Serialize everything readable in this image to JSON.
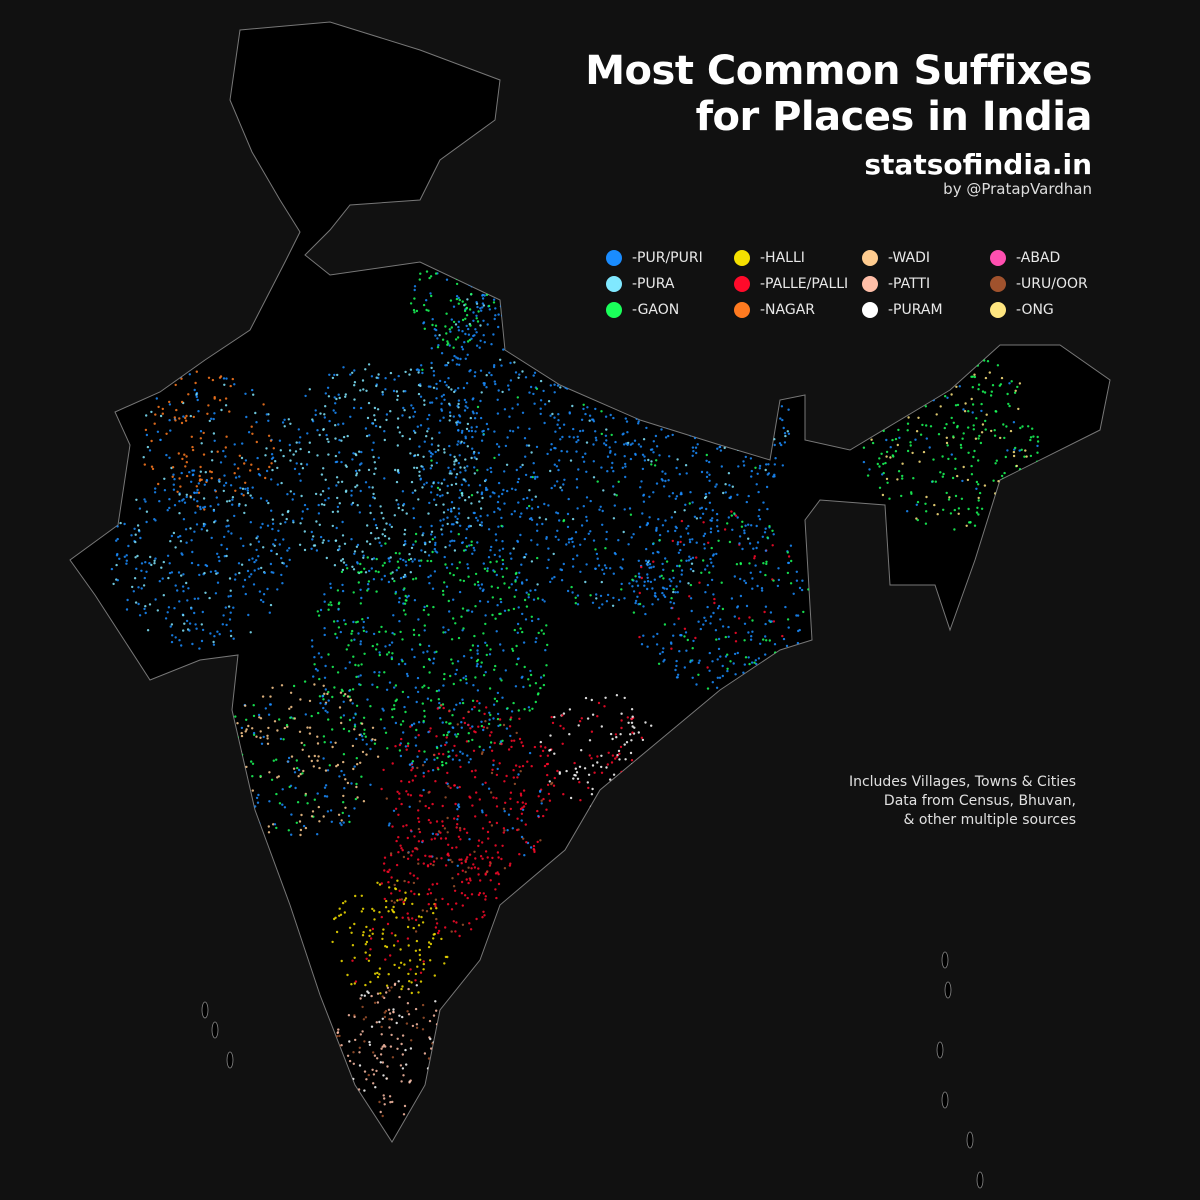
{
  "title_line1": "Most Common Suffixes",
  "title_line2": "for Places in India",
  "site": "statsofindia.in",
  "byline": "by @PratapVardhan",
  "legend": [
    {
      "label": "-PUR/PURI",
      "color": "#1a8cff"
    },
    {
      "label": "-HALLI",
      "color": "#f5e000"
    },
    {
      "label": "-WADI",
      "color": "#ffcc90"
    },
    {
      "label": "-ABAD",
      "color": "#ff4fb0"
    },
    {
      "label": "-PURA",
      "color": "#80e8ff"
    },
    {
      "label": "-PALLE/PALLI",
      "color": "#ff0a2a"
    },
    {
      "label": "-PATTI",
      "color": "#ffbfa8"
    },
    {
      "label": "-URU/OOR",
      "color": "#a0522d"
    },
    {
      "label": "-GAON",
      "color": "#1aff5a"
    },
    {
      "label": "-NAGAR",
      "color": "#ff7a20"
    },
    {
      "label": "-PURAM",
      "color": "#ffffff"
    },
    {
      "label": "-ONG",
      "color": "#ffe680"
    }
  ],
  "notes": [
    "Includes Villages, Towns & Cities",
    "Data from Census, Bhuvan,",
    "& other multiple sources"
  ]
}
